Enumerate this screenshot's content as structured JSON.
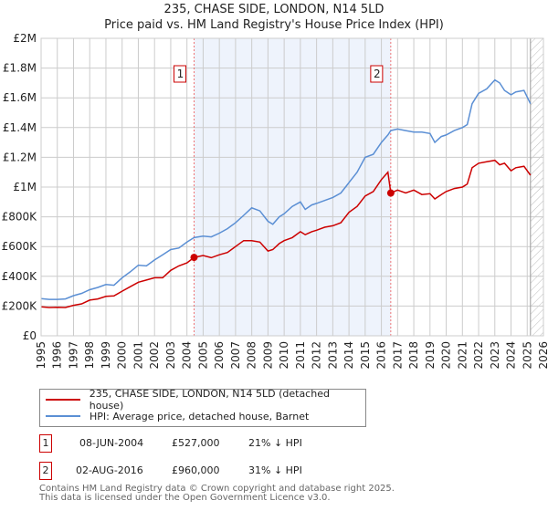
{
  "title_line1": "235, CHASE SIDE, LONDON, N14 5LD",
  "title_line2": "Price paid vs. HM Land Registry's House Price Index (HPI)",
  "chart_data": {
    "type": "line",
    "title": "235, CHASE SIDE, LONDON, N14 5LD — Price paid vs. HM Land Registry's House Price Index (HPI)",
    "xlim": [
      1995,
      2026
    ],
    "ylim": [
      0,
      2000000
    ],
    "x_ticks": [
      "1995",
      "1996",
      "1997",
      "1998",
      "1999",
      "2000",
      "2001",
      "2002",
      "2003",
      "2004",
      "2005",
      "2006",
      "2007",
      "2008",
      "2009",
      "2010",
      "2011",
      "2012",
      "2013",
      "2014",
      "2015",
      "2016",
      "2017",
      "2018",
      "2019",
      "2020",
      "2021",
      "2022",
      "2023",
      "2024",
      "2025",
      "2026"
    ],
    "y_ticks": [
      {
        "value": 0,
        "label": "£0"
      },
      {
        "value": 200000,
        "label": "£200K"
      },
      {
        "value": 400000,
        "label": "£400K"
      },
      {
        "value": 600000,
        "label": "£600K"
      },
      {
        "value": 800000,
        "label": "£800K"
      },
      {
        "value": 1000000,
        "label": "£1M"
      },
      {
        "value": 1200000,
        "label": "£1.2M"
      },
      {
        "value": 1400000,
        "label": "£1.4M"
      },
      {
        "value": 1600000,
        "label": "£1.6M"
      },
      {
        "value": 1800000,
        "label": "£1.8M"
      },
      {
        "value": 2000000,
        "label": "£2M"
      }
    ],
    "grid": true,
    "shaded_range": [
      2004.44,
      2016.58
    ],
    "forecast_hatch_from": 2025.2,
    "series": [
      {
        "name": "235, CHASE SIDE, LONDON, N14 5LD (detached house)",
        "color": "#cc0000",
        "x": [
          1995,
          1995.5,
          1996,
          1996.5,
          1997,
          1997.5,
          1998,
          1998.5,
          1999,
          1999.5,
          2000,
          2000.5,
          2001,
          2001.5,
          2002,
          2002.5,
          2003,
          2003.5,
          2004,
          2004.44,
          2005,
          2005.5,
          2006,
          2006.5,
          2007,
          2007.5,
          2008,
          2008.5,
          2009,
          2009.3,
          2009.7,
          2010,
          2010.5,
          2011,
          2011.3,
          2011.7,
          2012,
          2012.5,
          2013,
          2013.5,
          2014,
          2014.5,
          2015,
          2015.5,
          2016,
          2016.4,
          2016.58,
          2017,
          2017.5,
          2018,
          2018.5,
          2019,
          2019.3,
          2019.7,
          2020,
          2020.5,
          2021,
          2021.3,
          2021.6,
          2022,
          2022.5,
          2023,
          2023.3,
          2023.6,
          2024,
          2024.3,
          2024.8,
          2025.2
        ],
        "y": [
          195000,
          190000,
          192000,
          190000,
          205000,
          215000,
          240000,
          248000,
          265000,
          268000,
          300000,
          330000,
          360000,
          375000,
          390000,
          390000,
          440000,
          470000,
          490000,
          527000,
          540000,
          525000,
          545000,
          560000,
          600000,
          640000,
          640000,
          630000,
          570000,
          580000,
          620000,
          640000,
          660000,
          700000,
          680000,
          700000,
          710000,
          730000,
          740000,
          760000,
          830000,
          870000,
          940000,
          970000,
          1050000,
          1100000,
          960000,
          980000,
          960000,
          980000,
          950000,
          955000,
          920000,
          950000,
          970000,
          990000,
          1000000,
          1020000,
          1130000,
          1160000,
          1170000,
          1180000,
          1150000,
          1160000,
          1110000,
          1130000,
          1140000,
          1080000
        ]
      },
      {
        "name": "HPI: Average price, detached house, Barnet",
        "color": "#5b8fd4",
        "x": [
          1995,
          1995.5,
          1996,
          1996.5,
          1997,
          1997.5,
          1998,
          1998.5,
          1999,
          1999.5,
          2000,
          2000.5,
          2001,
          2001.5,
          2002,
          2002.5,
          2003,
          2003.5,
          2004,
          2004.44,
          2005,
          2005.5,
          2006,
          2006.5,
          2007,
          2007.5,
          2008,
          2008.5,
          2009,
          2009.3,
          2009.7,
          2010,
          2010.5,
          2011,
          2011.3,
          2011.7,
          2012,
          2012.5,
          2013,
          2013.5,
          2014,
          2014.5,
          2015,
          2015.5,
          2016,
          2016.4,
          2016.58,
          2017,
          2017.5,
          2018,
          2018.5,
          2019,
          2019.3,
          2019.7,
          2020,
          2020.5,
          2021,
          2021.3,
          2021.6,
          2022,
          2022.5,
          2023,
          2023.3,
          2023.6,
          2024,
          2024.3,
          2024.8,
          2025.2
        ],
        "y": [
          250000,
          245000,
          245000,
          248000,
          270000,
          285000,
          310000,
          325000,
          345000,
          340000,
          390000,
          430000,
          475000,
          470000,
          510000,
          545000,
          580000,
          590000,
          630000,
          660000,
          670000,
          665000,
          690000,
          720000,
          760000,
          810000,
          860000,
          840000,
          770000,
          750000,
          800000,
          820000,
          870000,
          900000,
          850000,
          880000,
          890000,
          910000,
          930000,
          960000,
          1030000,
          1100000,
          1200000,
          1220000,
          1300000,
          1350000,
          1380000,
          1390000,
          1380000,
          1370000,
          1370000,
          1360000,
          1300000,
          1340000,
          1350000,
          1380000,
          1400000,
          1420000,
          1560000,
          1630000,
          1660000,
          1720000,
          1700000,
          1650000,
          1620000,
          1640000,
          1650000,
          1560000
        ]
      }
    ],
    "markers": [
      {
        "label": "1",
        "x": 2004.44,
        "y": 527000
      },
      {
        "label": "2",
        "x": 2016.58,
        "y": 960000
      }
    ]
  },
  "legend": {
    "items": [
      {
        "label": "235, CHASE SIDE, LONDON, N14 5LD (detached house)",
        "color": "#cc0000"
      },
      {
        "label": "HPI: Average price, detached house, Barnet",
        "color": "#5b8fd4"
      }
    ]
  },
  "transactions": [
    {
      "num": "1",
      "date": "08-JUN-2004",
      "price": "£527,000",
      "hpi": "21% ↓ HPI"
    },
    {
      "num": "2",
      "date": "02-AUG-2016",
      "price": "£960,000",
      "hpi": "31% ↓ HPI"
    }
  ],
  "footer_line1": "Contains HM Land Registry data © Crown copyright and database right 2025.",
  "footer_line2": "This data is licensed under the Open Government Licence v3.0."
}
